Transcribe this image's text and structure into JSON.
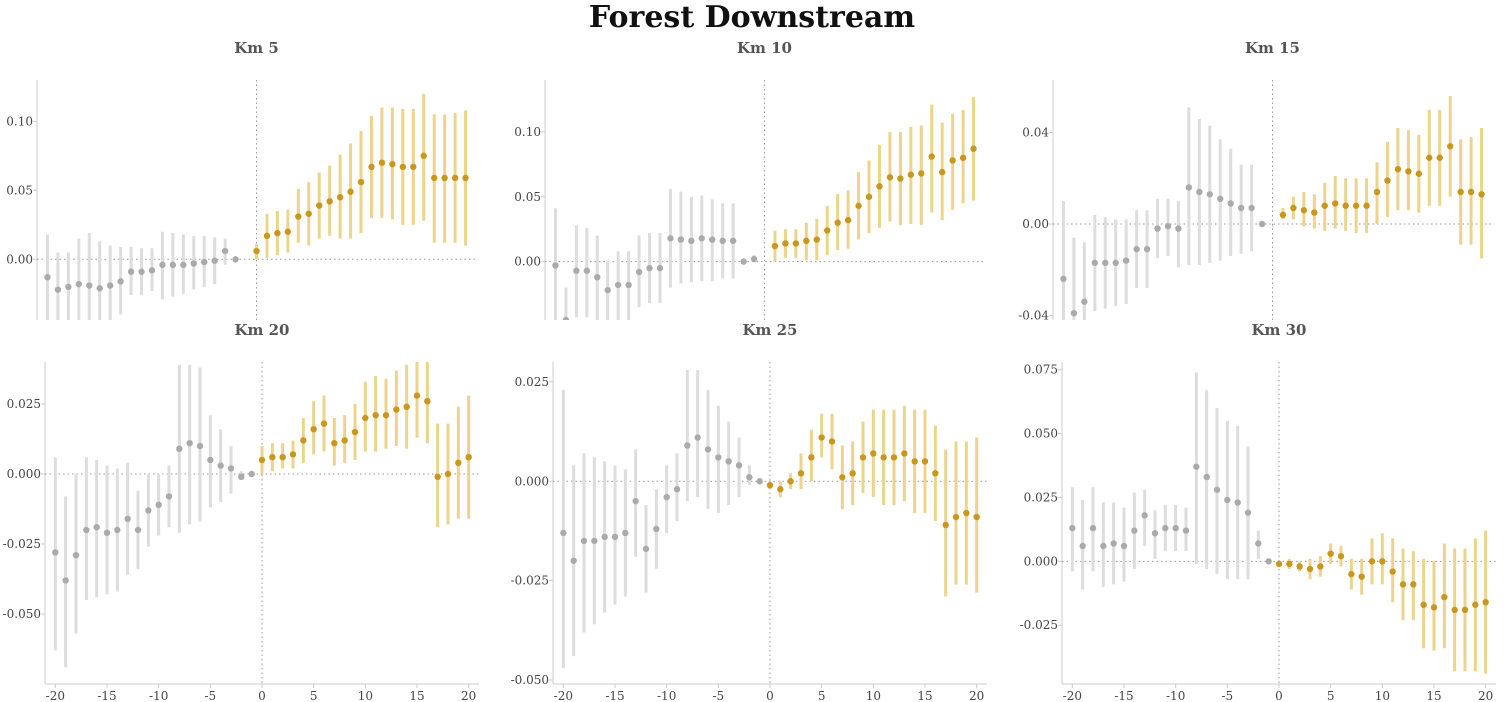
{
  "figure": {
    "title": "Forest Downstream"
  },
  "colors": {
    "pre": "#aaaaaa",
    "pre_ci": "#dddddd",
    "post": "#c9961e",
    "post_ci": "#edd48c"
  },
  "chart_data": [
    {
      "type": "scatter",
      "title": "Km 5",
      "xlim": [
        -21,
        21
      ],
      "ylim": [
        -0.044,
        0.13
      ],
      "xticks": [],
      "yticks": [
        0.0,
        0.05,
        0.1
      ],
      "ytick_labels": [
        "0.00",
        "0.05",
        "0.10"
      ],
      "x": [
        -20,
        -19,
        -18,
        -17,
        -16,
        -15,
        -14,
        -13,
        -12,
        -11,
        -10,
        -9,
        -8,
        -7,
        -6,
        -5,
        -4,
        -3,
        -2,
        -1,
        0,
        1,
        2,
        3,
        4,
        5,
        6,
        7,
        8,
        9,
        10,
        11,
        12,
        13,
        14,
        15,
        16,
        17,
        18,
        19,
        20
      ],
      "estimate": [
        -0.013,
        -0.022,
        -0.02,
        -0.018,
        -0.019,
        -0.021,
        -0.019,
        -0.016,
        -0.009,
        -0.009,
        -0.008,
        -0.004,
        -0.004,
        -0.004,
        -0.003,
        -0.002,
        -0.001,
        0.006,
        0.0,
        null,
        0.006,
        0.017,
        0.019,
        0.02,
        0.031,
        0.033,
        0.039,
        0.042,
        0.045,
        0.049,
        0.056,
        0.067,
        0.07,
        0.069,
        0.067,
        0.067,
        0.075,
        0.059,
        0.059,
        0.059,
        0.059
      ],
      "ci_low": [
        -0.044,
        -0.044,
        -0.044,
        -0.05,
        -0.055,
        -0.052,
        -0.05,
        -0.04,
        -0.026,
        -0.026,
        -0.023,
        -0.029,
        -0.027,
        -0.025,
        -0.022,
        -0.02,
        -0.018,
        -0.004,
        0.0,
        null,
        0.0,
        0.001,
        0.003,
        0.005,
        0.012,
        0.01,
        0.015,
        0.017,
        0.015,
        0.015,
        0.019,
        0.03,
        0.03,
        0.029,
        0.025,
        0.025,
        0.028,
        0.012,
        0.012,
        0.012,
        0.01
      ],
      "ci_high": [
        0.018,
        0.005,
        0.005,
        0.015,
        0.019,
        0.013,
        0.01,
        0.009,
        0.009,
        0.008,
        0.008,
        0.02,
        0.019,
        0.018,
        0.017,
        0.017,
        0.016,
        0.015,
        0.0,
        null,
        0.011,
        0.033,
        0.035,
        0.036,
        0.051,
        0.056,
        0.063,
        0.068,
        0.076,
        0.084,
        0.093,
        0.104,
        0.11,
        0.11,
        0.109,
        0.109,
        0.12,
        0.105,
        0.105,
        0.106,
        0.108
      ]
    },
    {
      "type": "scatter",
      "title": "Km 10",
      "xlim": [
        -21,
        21
      ],
      "ylim": [
        -0.045,
        0.14
      ],
      "xticks": [],
      "yticks": [
        0.0,
        0.05,
        0.1
      ],
      "ytick_labels": [
        "0.00",
        "0.05",
        "0.10"
      ],
      "x": [
        -20,
        -19,
        -18,
        -17,
        -16,
        -15,
        -14,
        -13,
        -12,
        -11,
        -10,
        -9,
        -8,
        -7,
        -6,
        -5,
        -4,
        -3,
        -2,
        -1,
        0,
        1,
        2,
        3,
        4,
        5,
        6,
        7,
        8,
        9,
        10,
        11,
        12,
        13,
        14,
        15,
        16,
        17,
        18,
        19,
        20
      ],
      "estimate": [
        -0.003,
        -0.045,
        -0.007,
        -0.007,
        -0.012,
        -0.022,
        -0.018,
        -0.018,
        -0.008,
        -0.005,
        -0.005,
        0.018,
        0.017,
        0.016,
        0.018,
        0.017,
        0.016,
        0.016,
        0.0,
        0.002,
        null,
        0.012,
        0.014,
        0.014,
        0.016,
        0.017,
        0.024,
        0.03,
        0.032,
        0.043,
        0.05,
        0.058,
        0.065,
        0.064,
        0.067,
        0.068,
        0.081,
        0.069,
        0.078,
        0.08,
        0.087
      ],
      "ci_low": [
        -0.045,
        -0.045,
        -0.043,
        -0.043,
        -0.045,
        -0.045,
        -0.045,
        -0.045,
        -0.035,
        -0.032,
        -0.032,
        -0.02,
        -0.017,
        -0.016,
        -0.015,
        -0.015,
        -0.013,
        -0.013,
        0.0,
        0.0,
        null,
        0.0,
        0.003,
        0.003,
        0.001,
        0.001,
        0.005,
        0.009,
        0.01,
        0.017,
        0.022,
        0.026,
        0.031,
        0.028,
        0.029,
        0.028,
        0.038,
        0.032,
        0.04,
        0.045,
        0.047
      ],
      "ci_high": [
        0.041,
        -0.02,
        0.028,
        0.026,
        0.02,
        0.001,
        0.008,
        0.008,
        0.02,
        0.022,
        0.022,
        0.056,
        0.054,
        0.05,
        0.051,
        0.048,
        0.045,
        0.045,
        0.0,
        0.005,
        null,
        0.024,
        0.025,
        0.025,
        0.03,
        0.033,
        0.043,
        0.052,
        0.055,
        0.069,
        0.078,
        0.09,
        0.1,
        0.1,
        0.104,
        0.105,
        0.121,
        0.107,
        0.114,
        0.117,
        0.127
      ]
    },
    {
      "type": "scatter",
      "title": "Km 15",
      "xlim": [
        -21,
        21
      ],
      "ylim": [
        -0.042,
        0.063
      ],
      "xticks": [],
      "yticks": [
        -0.04,
        0.0,
        0.04
      ],
      "ytick_labels": [
        "-0.04",
        "0.00",
        "0.04"
      ],
      "x": [
        -20,
        -19,
        -18,
        -17,
        -16,
        -15,
        -14,
        -13,
        -12,
        -11,
        -10,
        -9,
        -8,
        -7,
        -6,
        -5,
        -4,
        -3,
        -2,
        -1,
        0,
        1,
        2,
        3,
        4,
        5,
        6,
        7,
        8,
        9,
        10,
        11,
        12,
        13,
        14,
        15,
        16,
        17,
        18,
        19,
        20
      ],
      "estimate": [
        -0.024,
        -0.039,
        -0.034,
        -0.017,
        -0.017,
        -0.017,
        -0.016,
        -0.011,
        -0.011,
        -0.002,
        -0.001,
        -0.002,
        0.016,
        0.014,
        0.013,
        0.011,
        0.009,
        0.007,
        0.007,
        0.0,
        null,
        0.004,
        0.007,
        0.006,
        0.005,
        0.008,
        0.009,
        0.008,
        0.008,
        0.008,
        0.014,
        0.019,
        0.024,
        0.023,
        0.022,
        0.029,
        0.029,
        0.034,
        0.014,
        0.014,
        0.013
      ],
      "ci_low": [
        -0.042,
        -0.042,
        -0.042,
        -0.038,
        -0.037,
        -0.036,
        -0.035,
        -0.028,
        -0.028,
        -0.015,
        -0.014,
        -0.019,
        -0.018,
        -0.018,
        -0.017,
        -0.016,
        -0.014,
        -0.013,
        -0.012,
        0.0,
        null,
        0.002,
        0.002,
        -0.001,
        -0.002,
        -0.003,
        -0.002,
        -0.003,
        -0.004,
        -0.004,
        0.0,
        0.003,
        0.006,
        0.006,
        0.005,
        0.008,
        0.008,
        0.012,
        -0.009,
        -0.009,
        -0.015
      ],
      "ci_high": [
        0.01,
        -0.006,
        -0.008,
        0.004,
        0.003,
        0.002,
        0.002,
        0.006,
        0.006,
        0.011,
        0.011,
        0.01,
        0.051,
        0.046,
        0.043,
        0.037,
        0.033,
        0.026,
        0.026,
        0.0,
        null,
        0.007,
        0.012,
        0.014,
        0.013,
        0.018,
        0.021,
        0.02,
        0.02,
        0.02,
        0.027,
        0.036,
        0.042,
        0.041,
        0.039,
        0.05,
        0.05,
        0.056,
        0.037,
        0.038,
        0.042
      ]
    },
    {
      "type": "scatter",
      "title": "Km 20",
      "xlim": [
        -21,
        21
      ],
      "ylim": [
        -0.075,
        0.04
      ],
      "xticks": [
        -20,
        -15,
        -10,
        -5,
        0,
        5,
        10,
        15,
        20
      ],
      "xtick_labels": [
        "-20",
        "-15",
        "-10",
        "-5",
        "0",
        "5",
        "10",
        "15",
        "20"
      ],
      "yticks": [
        -0.05,
        -0.025,
        0.0,
        0.025
      ],
      "ytick_labels": [
        "-0.050",
        "-0.025",
        "0.000",
        "0.025"
      ],
      "x": [
        -20,
        -19,
        -18,
        -17,
        -16,
        -15,
        -14,
        -13,
        -12,
        -11,
        -10,
        -9,
        -8,
        -7,
        -6,
        -5,
        -4,
        -3,
        -2,
        -1,
        0,
        1,
        2,
        3,
        4,
        5,
        6,
        7,
        8,
        9,
        10,
        11,
        12,
        13,
        14,
        15,
        16,
        17,
        18,
        19,
        20
      ],
      "estimate": [
        -0.028,
        -0.038,
        -0.029,
        -0.02,
        -0.019,
        -0.021,
        -0.02,
        -0.016,
        -0.02,
        -0.013,
        -0.011,
        -0.008,
        0.009,
        0.011,
        0.01,
        0.005,
        0.003,
        0.002,
        -0.001,
        0.0,
        0.005,
        0.006,
        0.006,
        0.007,
        0.012,
        0.016,
        0.018,
        0.011,
        0.012,
        0.015,
        0.02,
        0.021,
        0.021,
        0.023,
        0.024,
        0.028,
        0.026,
        -0.001,
        0.0,
        0.004,
        0.006
      ],
      "ci_low": [
        -0.063,
        -0.069,
        -0.057,
        -0.045,
        -0.044,
        -0.043,
        -0.042,
        -0.036,
        -0.034,
        -0.026,
        -0.022,
        -0.019,
        -0.021,
        -0.018,
        -0.017,
        -0.012,
        -0.01,
        -0.007,
        -0.002,
        0.0,
        0.0,
        0.001,
        0.002,
        0.002,
        0.004,
        0.007,
        0.008,
        0.003,
        0.004,
        0.005,
        0.008,
        0.008,
        0.009,
        0.01,
        0.009,
        0.013,
        0.011,
        -0.019,
        -0.018,
        -0.016,
        -0.016
      ],
      "ci_high": [
        0.006,
        -0.008,
        0.0,
        0.006,
        0.005,
        0.003,
        0.002,
        0.004,
        -0.006,
        0.0,
        0.0,
        0.003,
        0.039,
        0.039,
        0.038,
        0.021,
        0.016,
        0.01,
        0.001,
        0.0,
        0.01,
        0.011,
        0.011,
        0.012,
        0.02,
        0.026,
        0.028,
        0.02,
        0.021,
        0.025,
        0.033,
        0.035,
        0.034,
        0.037,
        0.039,
        0.043,
        0.042,
        0.018,
        0.018,
        0.024,
        0.028
      ]
    },
    {
      "type": "scatter",
      "title": "Km 25",
      "xlim": [
        -21,
        21
      ],
      "ylim": [
        -0.051,
        0.03
      ],
      "xticks": [
        -20,
        -15,
        -10,
        -5,
        0,
        5,
        10,
        15,
        20
      ],
      "xtick_labels": [
        "-20",
        "-15",
        "-10",
        "-5",
        "0",
        "5",
        "10",
        "15",
        "20"
      ],
      "yticks": [
        -0.05,
        -0.025,
        0.0,
        0.025
      ],
      "ytick_labels": [
        "-0.050",
        "-0.025",
        "0.000",
        "0.025"
      ],
      "x": [
        -20,
        -19,
        -18,
        -17,
        -16,
        -15,
        -14,
        -13,
        -12,
        -11,
        -10,
        -9,
        -8,
        -7,
        -6,
        -5,
        -4,
        -3,
        -2,
        -1,
        0,
        1,
        2,
        3,
        4,
        5,
        6,
        7,
        8,
        9,
        10,
        11,
        12,
        13,
        14,
        15,
        16,
        17,
        18,
        19,
        20
      ],
      "estimate": [
        -0.013,
        -0.02,
        -0.015,
        -0.015,
        -0.014,
        -0.014,
        -0.013,
        -0.005,
        -0.017,
        -0.012,
        -0.004,
        -0.002,
        0.009,
        0.011,
        0.008,
        0.006,
        0.005,
        0.004,
        0.001,
        0.0,
        -0.001,
        -0.002,
        0.0,
        0.002,
        0.006,
        0.011,
        0.01,
        0.001,
        0.002,
        0.006,
        0.007,
        0.006,
        0.006,
        0.007,
        0.005,
        0.005,
        0.002,
        -0.011,
        -0.009,
        -0.008,
        -0.009
      ],
      "ci_low": [
        -0.047,
        -0.044,
        -0.038,
        -0.036,
        -0.033,
        -0.031,
        -0.029,
        -0.019,
        -0.028,
        -0.022,
        -0.013,
        -0.01,
        -0.005,
        -0.004,
        -0.007,
        -0.008,
        -0.006,
        -0.004,
        -0.001,
        0.0,
        -0.002,
        -0.004,
        -0.002,
        -0.002,
        0.0,
        0.006,
        0.003,
        -0.007,
        -0.006,
        -0.003,
        -0.004,
        -0.006,
        -0.006,
        -0.005,
        -0.008,
        -0.008,
        -0.01,
        -0.029,
        -0.026,
        -0.026,
        -0.028
      ],
      "ci_high": [
        0.023,
        0.004,
        0.007,
        0.006,
        0.005,
        0.004,
        0.003,
        0.008,
        -0.006,
        -0.002,
        0.004,
        0.007,
        0.028,
        0.028,
        0.023,
        0.019,
        0.015,
        0.011,
        0.004,
        0.0,
        0.0,
        0.0,
        0.002,
        0.007,
        0.013,
        0.017,
        0.017,
        0.009,
        0.01,
        0.015,
        0.018,
        0.018,
        0.018,
        0.019,
        0.018,
        0.018,
        0.014,
        0.008,
        0.01,
        0.01,
        0.011
      ]
    },
    {
      "type": "scatter",
      "title": "Km 30",
      "xlim": [
        -21,
        21
      ],
      "ylim": [
        -0.048,
        0.078
      ],
      "xticks": [
        -20,
        -15,
        -10,
        -5,
        0,
        5,
        10,
        15,
        20
      ],
      "xtick_labels": [
        "-20",
        "-15",
        "-10",
        "-5",
        "0",
        "5",
        "10",
        "15",
        "20"
      ],
      "yticks": [
        -0.025,
        0.0,
        0.025,
        0.05,
        0.075
      ],
      "ytick_labels": [
        "-0.025",
        "0.000",
        "0.025",
        "0.050",
        "0.075"
      ],
      "x": [
        -20,
        -19,
        -18,
        -17,
        -16,
        -15,
        -14,
        -13,
        -12,
        -11,
        -10,
        -9,
        -8,
        -7,
        -6,
        -5,
        -4,
        -3,
        -2,
        -1,
        0,
        1,
        2,
        3,
        4,
        5,
        6,
        7,
        8,
        9,
        10,
        11,
        12,
        13,
        14,
        15,
        16,
        17,
        18,
        19,
        20
      ],
      "estimate": [
        0.013,
        0.006,
        0.013,
        0.006,
        0.007,
        0.006,
        0.012,
        0.018,
        0.011,
        0.013,
        0.013,
        0.012,
        0.037,
        0.033,
        0.028,
        0.024,
        0.023,
        0.019,
        0.007,
        0.0,
        -0.001,
        -0.001,
        -0.002,
        -0.003,
        -0.002,
        0.003,
        0.002,
        -0.005,
        -0.006,
        0.0,
        0.0,
        -0.004,
        -0.009,
        -0.009,
        -0.017,
        -0.018,
        -0.014,
        -0.019,
        -0.019,
        -0.017,
        -0.016
      ],
      "ci_low": [
        -0.004,
        -0.011,
        -0.004,
        -0.01,
        -0.009,
        -0.008,
        -0.003,
        0.006,
        0.001,
        0.004,
        0.004,
        0.004,
        -0.001,
        -0.003,
        -0.005,
        -0.007,
        -0.007,
        -0.007,
        0.001,
        0.0,
        -0.002,
        -0.003,
        -0.004,
        -0.007,
        -0.006,
        -0.001,
        -0.002,
        -0.011,
        -0.013,
        -0.009,
        -0.009,
        -0.016,
        -0.023,
        -0.023,
        -0.034,
        -0.035,
        -0.034,
        -0.043,
        -0.043,
        -0.043,
        -0.044
      ],
      "ci_high": [
        0.029,
        0.024,
        0.029,
        0.023,
        0.023,
        0.021,
        0.027,
        0.028,
        0.02,
        0.022,
        0.022,
        0.021,
        0.074,
        0.067,
        0.06,
        0.055,
        0.053,
        0.045,
        0.012,
        0.0,
        0.0,
        0.001,
        0.0,
        0.001,
        0.002,
        0.007,
        0.006,
        0.001,
        0.001,
        0.009,
        0.011,
        0.009,
        0.005,
        0.004,
        0.001,
        0.0,
        0.007,
        0.005,
        0.005,
        0.009,
        0.012
      ]
    }
  ]
}
